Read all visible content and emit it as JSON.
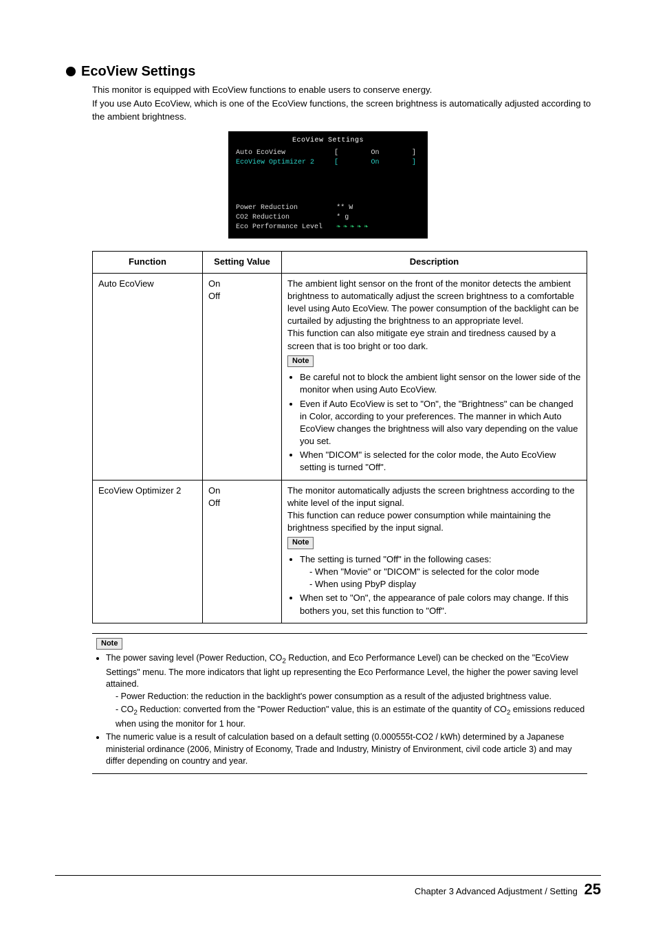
{
  "heading": "EcoView Settings",
  "intro": {
    "p1": "This monitor is equipped with EcoView functions to enable users to conserve energy.",
    "p2": "If you use Auto EcoView, which is one of the EcoView functions, the screen brightness is automatically adjusted according to the ambient brightness."
  },
  "osd": {
    "title": "EcoView Settings",
    "rows": [
      {
        "label": "Auto EcoView",
        "value": "On",
        "hl": false
      },
      {
        "label": "EcoView Optimizer 2",
        "value": "On",
        "hl": true
      }
    ],
    "stats": {
      "power_label": "Power Reduction",
      "power_val": "** W",
      "co2_label": "CO2 Reduction",
      "co2_val": "* g",
      "eco_label": "Eco Performance Level"
    },
    "leaf_count": 5,
    "leaf_color": "#29c06c",
    "highlight_color": "#2bd1c6",
    "bg": "#000000",
    "fg": "#dddddd"
  },
  "table": {
    "headers": {
      "func": "Function",
      "val": "Setting Value",
      "desc": "Description"
    },
    "rows": [
      {
        "func": "Auto EcoView",
        "val": "On\nOff",
        "desc_main": "The ambient light sensor on the front of the monitor detects the ambient brightness to automatically adjust the screen brightness to a comfortable level using Auto EcoView. The power consumption of the backlight can be curtailed by adjusting the brightness to an appropriate level.\nThis function can also mitigate eye strain and tiredness caused by a screen that is too bright or too dark.",
        "note_label": "Note",
        "note_items": [
          "Be careful not to block the ambient light sensor on the lower side of the monitor when using Auto EcoView.",
          "Even if Auto EcoView is set to \"On\", the \"Brightness\" can be changed in Color, according to your preferences. The manner in which Auto EcoView changes the brightness will also vary depending on the value you set.",
          "When \"DICOM\" is selected for the color mode, the Auto EcoView setting is turned \"Off\"."
        ]
      },
      {
        "func": "EcoView Optimizer 2",
        "val": "On\nOff",
        "desc_main": "The monitor automatically adjusts the screen brightness according to the white level of the input signal.\nThis function can reduce power consumption while maintaining the brightness specified by the input signal.",
        "note_label": "Note",
        "note_items": [
          "The setting is turned \"Off\" in the following cases:",
          "When set to \"On\", the appearance of pale colors may change. If this bothers you, set this function to \"Off\"."
        ],
        "note_sub": [
          "- When \"Movie\" or \"DICOM\" is selected for the color mode",
          "- When using PbyP display"
        ]
      }
    ]
  },
  "bottom_note": {
    "label": "Note",
    "items": [
      {
        "text_pre": "The power saving level (Power Reduction, CO",
        "sub1": "2",
        "text_mid": " Reduction, and Eco Performance Level) can be checked on the \"EcoView Settings\" menu. The more indicators that light up representing the Eco Performance Level, the higher the power saving level attained.",
        "subs": [
          "Power Reduction: the reduction in the backlight's power consumption as a result of the adjusted brightness value.",
          "CO2_SUB Reduction: converted from the \"Power Reduction\" value, this is an estimate of the quantity of CO2_SUB emissions reduced when using the monitor for 1 hour."
        ]
      },
      {
        "text_pre": "The numeric value is a result of calculation based on a default setting (0.000555t-CO2 / kWh) determined by a Japanese ministerial ordinance (2006, Ministry of Economy, Trade and Industry, Ministry of Environment, civil code article 3) and may differ depending on country and year."
      }
    ]
  },
  "footer": {
    "chapter": "Chapter 3 Advanced Adjustment / Setting",
    "page": "25"
  }
}
